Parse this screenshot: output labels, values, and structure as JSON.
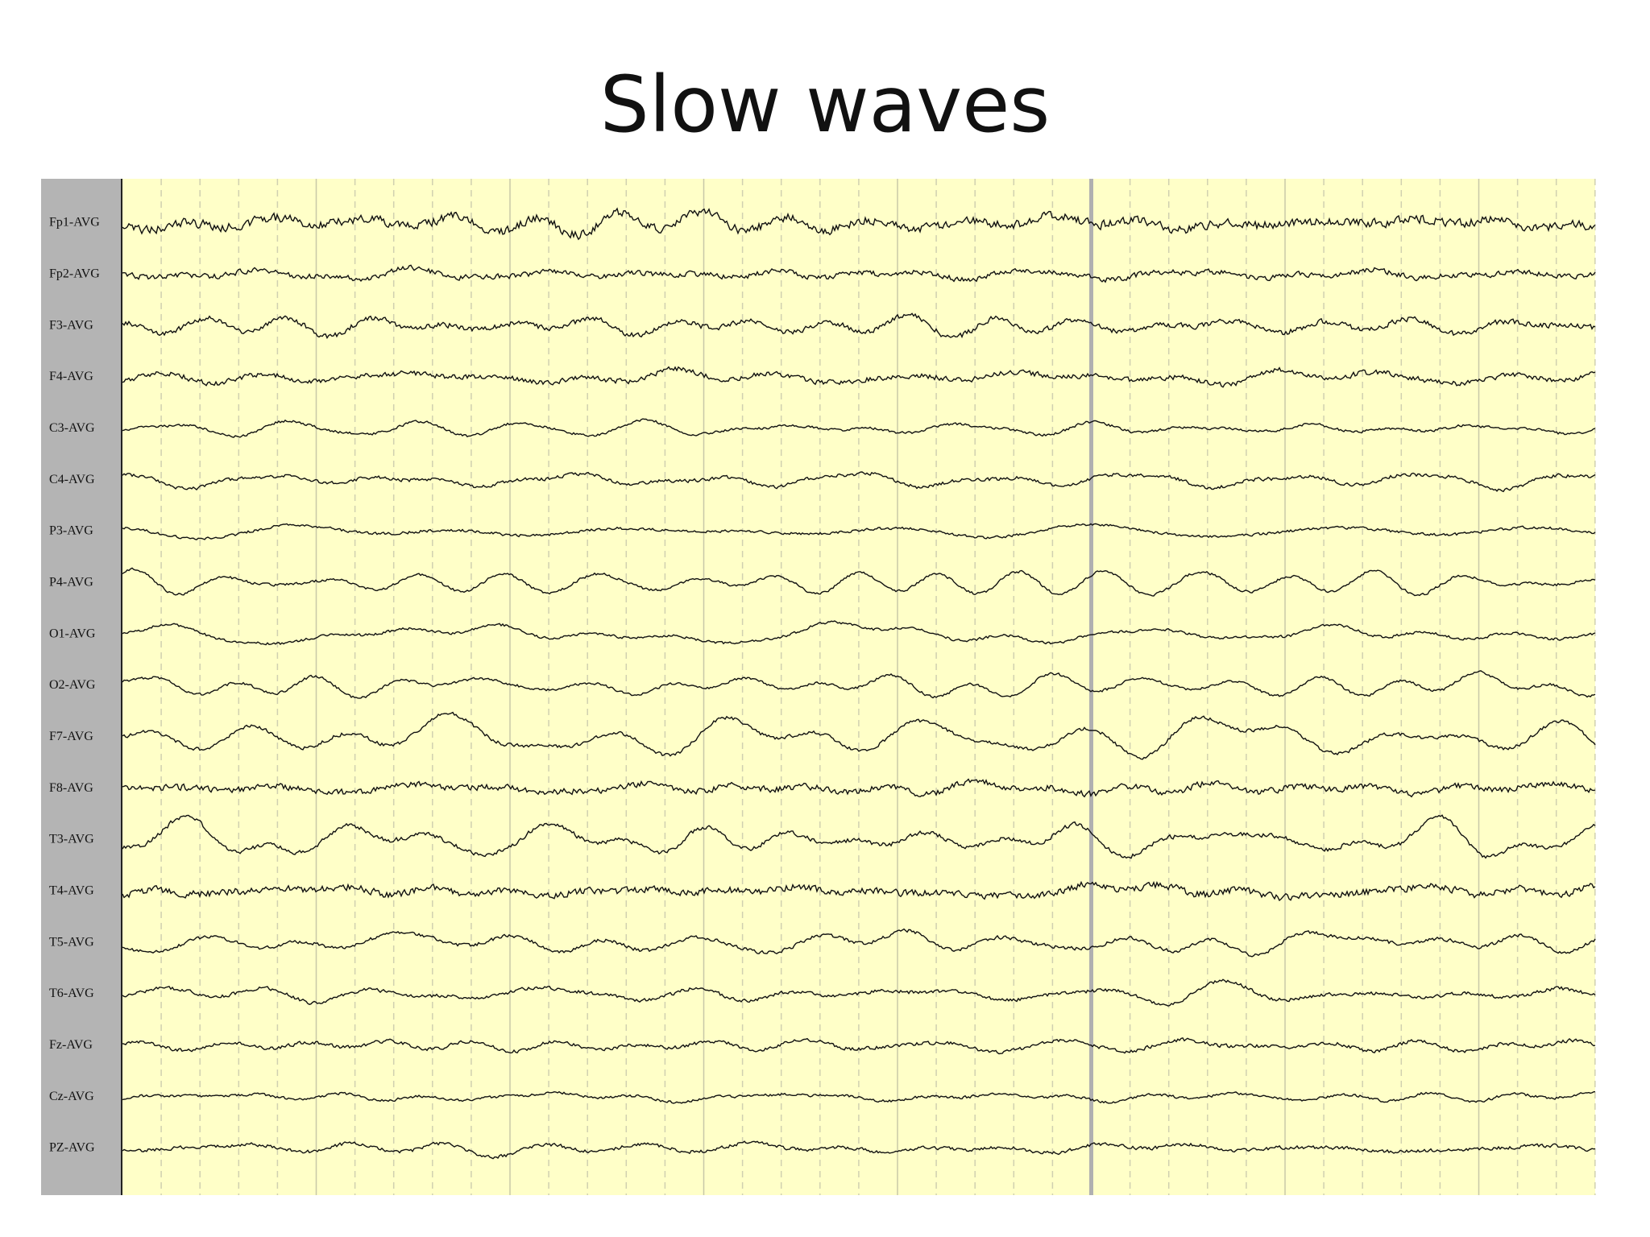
{
  "header": {
    "title": "Slow waves"
  },
  "channels": [
    "Fp1-AVG",
    "Fp2-AVG",
    "F3-AVG",
    "F4-AVG",
    "C3-AVG",
    "C4-AVG",
    "P3-AVG",
    "P4-AVG",
    "O1-AVG",
    "O2-AVG",
    "F7-AVG",
    "F8-AVG",
    "T3-AVG",
    "T4-AVG",
    "T5-AVG",
    "T6-AVG",
    "Fz-AVG",
    "Cz-AVG",
    "PZ-AVG"
  ]
}
